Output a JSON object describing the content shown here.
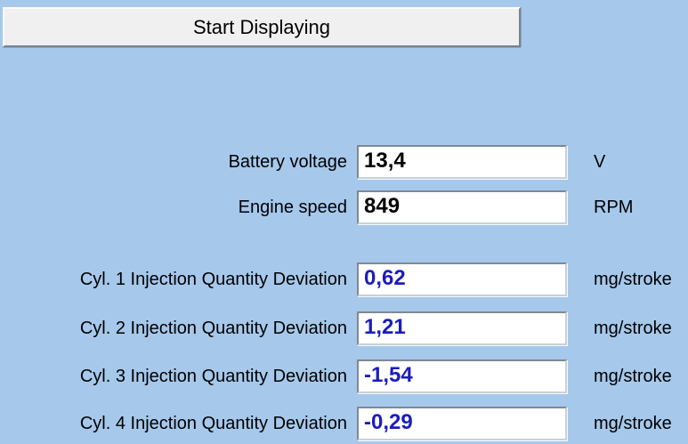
{
  "colors": {
    "background": "#A6C8EB",
    "value_black": "#000000",
    "value_blue": "#1C1CBE",
    "button_face": "#F0F0F0"
  },
  "button": {
    "label": "Start Displaying"
  },
  "rows": [
    {
      "label": "Battery voltage",
      "value": "13,4",
      "unit": "V",
      "value_color": "#000000"
    },
    {
      "label": "Engine speed",
      "value": "849",
      "unit": "RPM",
      "value_color": "#000000"
    },
    {
      "label": "Cyl. 1 Injection Quantity Deviation",
      "value": "0,62",
      "unit": "mg/stroke",
      "value_color": "#1C1CBE"
    },
    {
      "label": "Cyl. 2 Injection Quantity Deviation",
      "value": "1,21",
      "unit": "mg/stroke",
      "value_color": "#1C1CBE"
    },
    {
      "label": "Cyl. 3 Injection Quantity Deviation",
      "value": "-1,54",
      "unit": "mg/stroke",
      "value_color": "#1C1CBE"
    },
    {
      "label": "Cyl. 4 Injection Quantity Deviation",
      "value": "-0,29",
      "unit": "mg/stroke",
      "value_color": "#1C1CBE"
    }
  ]
}
